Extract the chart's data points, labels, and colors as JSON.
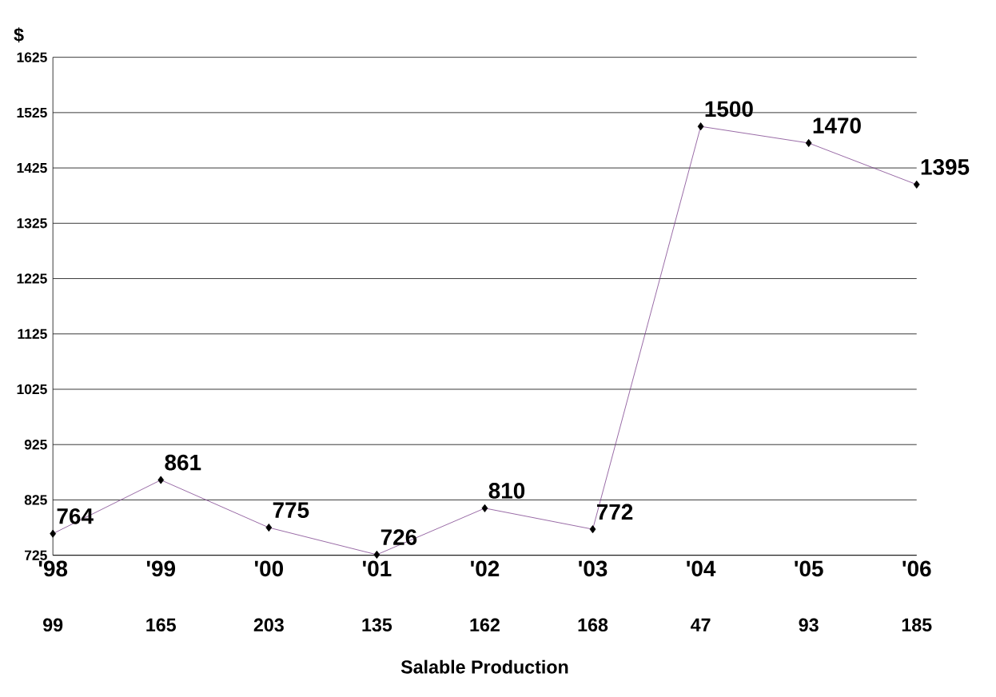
{
  "chart_data": {
    "type": "line",
    "ylabel": "$",
    "xlabel": "Salable Production",
    "categories": [
      "'98",
      "'99",
      "'00",
      "'01",
      "'02",
      "'03",
      "'04",
      "'05",
      "'06"
    ],
    "series": [
      {
        "color": "#7b3f8c",
        "values": [
          764,
          861,
          775,
          726,
          810,
          772,
          1500,
          1470,
          1395
        ]
      }
    ],
    "annotations": [
      "99",
      "165",
      "203",
      "135",
      "162",
      "168",
      "47",
      "93",
      "185"
    ],
    "ylim": [
      725,
      1625
    ],
    "yticks": [
      725,
      825,
      925,
      1025,
      1125,
      1225,
      1325,
      1425,
      1525,
      1625
    ],
    "grid": "y",
    "marker": "diamond",
    "line_style": "solid",
    "data_labels": true
  }
}
